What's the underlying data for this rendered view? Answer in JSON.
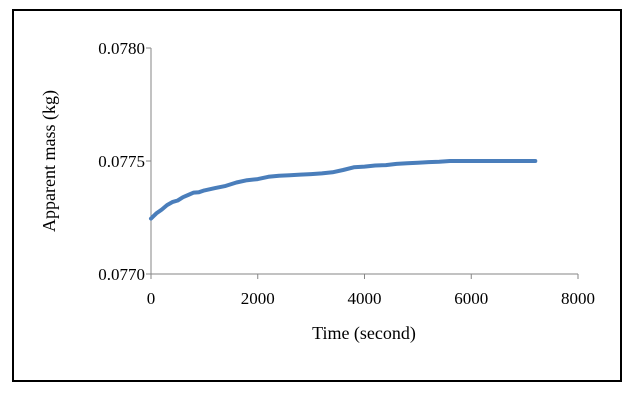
{
  "chart_data": {
    "type": "line",
    "xlabel": "Time (second)",
    "ylabel": "Apparent mass (kg)",
    "xlim": [
      0,
      8000
    ],
    "ylim": [
      0.077,
      0.078
    ],
    "x_ticks": [
      0,
      2000,
      4000,
      6000,
      8000
    ],
    "x_tick_labels": [
      "0",
      "2000",
      "4000",
      "6000",
      "8000"
    ],
    "y_ticks": [
      0.077,
      0.0775,
      0.078
    ],
    "y_tick_labels": [
      "0.0770",
      "0.0775",
      "0.0780"
    ],
    "grid": false,
    "legend": "none",
    "series": [
      {
        "color": "#4a7ebb",
        "x": [
          0,
          100,
          200,
          300,
          400,
          500,
          600,
          700,
          800,
          900,
          1000,
          1200,
          1400,
          1600,
          1800,
          2000,
          2200,
          2400,
          2600,
          2800,
          3000,
          3200,
          3400,
          3600,
          3800,
          4000,
          4200,
          4400,
          4600,
          4800,
          5000,
          5200,
          5400,
          5600,
          5800,
          6000,
          6500,
          7000,
          7200
        ],
        "y": [
          0.077245,
          0.077268,
          0.077285,
          0.077305,
          0.077318,
          0.077325,
          0.07734,
          0.07735,
          0.07736,
          0.077362,
          0.07737,
          0.07738,
          0.07739,
          0.077405,
          0.077415,
          0.07742,
          0.07743,
          0.077435,
          0.077437,
          0.07744,
          0.077442,
          0.077445,
          0.07745,
          0.07746,
          0.077472,
          0.077475,
          0.07748,
          0.077482,
          0.077487,
          0.07749,
          0.077492,
          0.077495,
          0.077497,
          0.0775,
          0.0775,
          0.0775,
          0.0775,
          0.0775,
          0.0775
        ]
      }
    ]
  }
}
